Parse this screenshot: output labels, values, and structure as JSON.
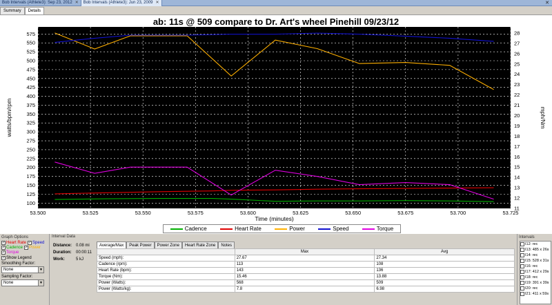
{
  "doc_tabs": [
    {
      "label": "Bob Intervals (Athlete3): Sep 23, 2012",
      "active": false
    },
    {
      "label": "Bob Intervals (Athlete3): Jun 23, 2009",
      "active": true
    }
  ],
  "window_close": "✕",
  "sub_tabs": [
    {
      "label": "Summary",
      "active": false
    },
    {
      "label": "Details",
      "active": true
    }
  ],
  "chart_data": {
    "type": "line",
    "title": "ab: 11s @ 509 compare to Dr. Art's wheel Pinehill 09/23/12",
    "xlabel": "Time (minutes)",
    "ylabel_left": "watts/bpm/rpm",
    "ylabel_right": "mph/Nm",
    "xlim": [
      53.5,
      53.725
    ],
    "ylim_left": [
      85,
      595
    ],
    "ylim_right": [
      11,
      28.6
    ],
    "x_ticks": [
      "53.500",
      "53.525",
      "53.550",
      "53.575",
      "53.600",
      "53.625",
      "53.650",
      "53.675",
      "53.700",
      "53.725"
    ],
    "y_ticks_left": [
      "100",
      "125",
      "150",
      "175",
      "200",
      "225",
      "250",
      "275",
      "300",
      "325",
      "350",
      "375",
      "400",
      "425",
      "450",
      "475",
      "500",
      "525",
      "550",
      "575"
    ],
    "y_ticks_right": [
      "11",
      "12",
      "13",
      "14",
      "15",
      "16",
      "17",
      "18",
      "19",
      "20",
      "21",
      "22",
      "23",
      "24",
      "25",
      "26",
      "27",
      "28"
    ],
    "grid": true,
    "legend_position": "bottom",
    "series": [
      {
        "name": "Cadence",
        "axis": "left",
        "color": "#00b000",
        "x": [
          53.508,
          53.533,
          53.558,
          53.583,
          53.592,
          53.613,
          53.633,
          53.653,
          53.675,
          53.696,
          53.717
        ],
        "y": [
          110,
          112,
          113,
          113,
          111,
          105,
          106,
          106,
          107,
          106,
          104
        ]
      },
      {
        "name": "Heart Rate",
        "axis": "left",
        "color": "#e00000",
        "x": [
          53.508,
          53.533,
          53.558,
          53.583,
          53.592,
          53.613,
          53.633,
          53.653,
          53.675,
          53.696,
          53.717
        ],
        "y": [
          126,
          129,
          132,
          134,
          136,
          137,
          139,
          140,
          141,
          142,
          143
        ]
      },
      {
        "name": "Power",
        "axis": "left",
        "color": "#ffb000",
        "x": [
          53.508,
          53.527,
          53.544,
          53.571,
          53.592,
          53.613,
          53.633,
          53.653,
          53.675,
          53.696,
          53.717
        ],
        "y": [
          578,
          533,
          570,
          570,
          457,
          558,
          534,
          492,
          495,
          487,
          419
        ]
      },
      {
        "name": "Speed",
        "axis": "right",
        "color": "#1010d0",
        "x": [
          53.508,
          53.527,
          53.544,
          53.571,
          53.592,
          53.613,
          53.633,
          53.653,
          53.675,
          53.696,
          53.717
        ],
        "y": [
          27.1,
          27.5,
          27.8,
          27.8,
          27.9,
          27.9,
          28.0,
          27.9,
          27.7,
          27.5,
          27.2
        ]
      },
      {
        "name": "Torque",
        "axis": "right",
        "color": "#e000e0",
        "x": [
          53.508,
          53.527,
          53.544,
          53.571,
          53.592,
          53.613,
          53.633,
          53.653,
          53.675,
          53.696,
          53.717
        ],
        "y": [
          15.5,
          14.4,
          15.0,
          15.0,
          12.3,
          14.7,
          14.1,
          13.3,
          13.5,
          13.3,
          11.9
        ]
      }
    ]
  },
  "graph_options": {
    "title": "Graph Options",
    "checkboxes": [
      {
        "label": "Heart Rate",
        "checked": true,
        "color": "#e00000"
      },
      {
        "label": "Speed",
        "checked": true,
        "color": "#1010d0"
      },
      {
        "label": "Cadence",
        "checked": true,
        "color": "#00b000"
      },
      {
        "label": "Power",
        "checked": true,
        "color": "#ffb000"
      },
      {
        "label": "Torque",
        "checked": true,
        "color": "#e000e0"
      }
    ],
    "show_legend": {
      "label": "Show Legend",
      "checked": true
    },
    "smoothing_label": "Smoothing Factor:",
    "smoothing_value": "None",
    "sampling_label": "Sampling Factor:",
    "sampling_value": "None"
  },
  "interval_data": {
    "title": "Interval Data",
    "distance_label": "Distance:",
    "distance_value": "0.08 mi",
    "duration_label": "Duration:",
    "duration_value": "00:00:11",
    "work_label": "Work:",
    "work_value": "5 kJ",
    "tabs": [
      {
        "label": "Average/Max",
        "active": true
      },
      {
        "label": "Peak Power",
        "active": false
      },
      {
        "label": "Power Zone",
        "active": false
      },
      {
        "label": "Heart Rate Zone",
        "active": false
      },
      {
        "label": "Notes",
        "active": false
      }
    ],
    "columns": [
      "",
      "Max",
      "Avg"
    ],
    "rows": [
      [
        "Speed (mph):",
        "27.67",
        "27.34"
      ],
      [
        "Cadence (rpm):",
        "113",
        "108"
      ],
      [
        "Heart Rate (bpm):",
        "143",
        "136"
      ],
      [
        "Torque (Nm):",
        "15.46",
        "13.88"
      ],
      [
        "Power (Watts):",
        "568",
        "509"
      ],
      [
        "Power (Watts/kg):",
        "7.8",
        "6.98"
      ]
    ]
  },
  "intervals": {
    "title": "Intervals",
    "items": [
      {
        "label": "I12: rec",
        "checked": false
      },
      {
        "label": "I13: 485 x 26s",
        "checked": false
      },
      {
        "label": "I14: rec",
        "checked": false
      },
      {
        "label": "I15: 528 x 31s",
        "checked": false
      },
      {
        "label": "I16: rec",
        "checked": false
      },
      {
        "label": "I17: 412 x 29s",
        "checked": false
      },
      {
        "label": "I18: rec",
        "checked": false
      },
      {
        "label": "I19: 391 x 39s",
        "checked": false
      },
      {
        "label": "I20: rec",
        "checked": false
      },
      {
        "label": "I21: 411 x 59s",
        "checked": false
      }
    ]
  }
}
